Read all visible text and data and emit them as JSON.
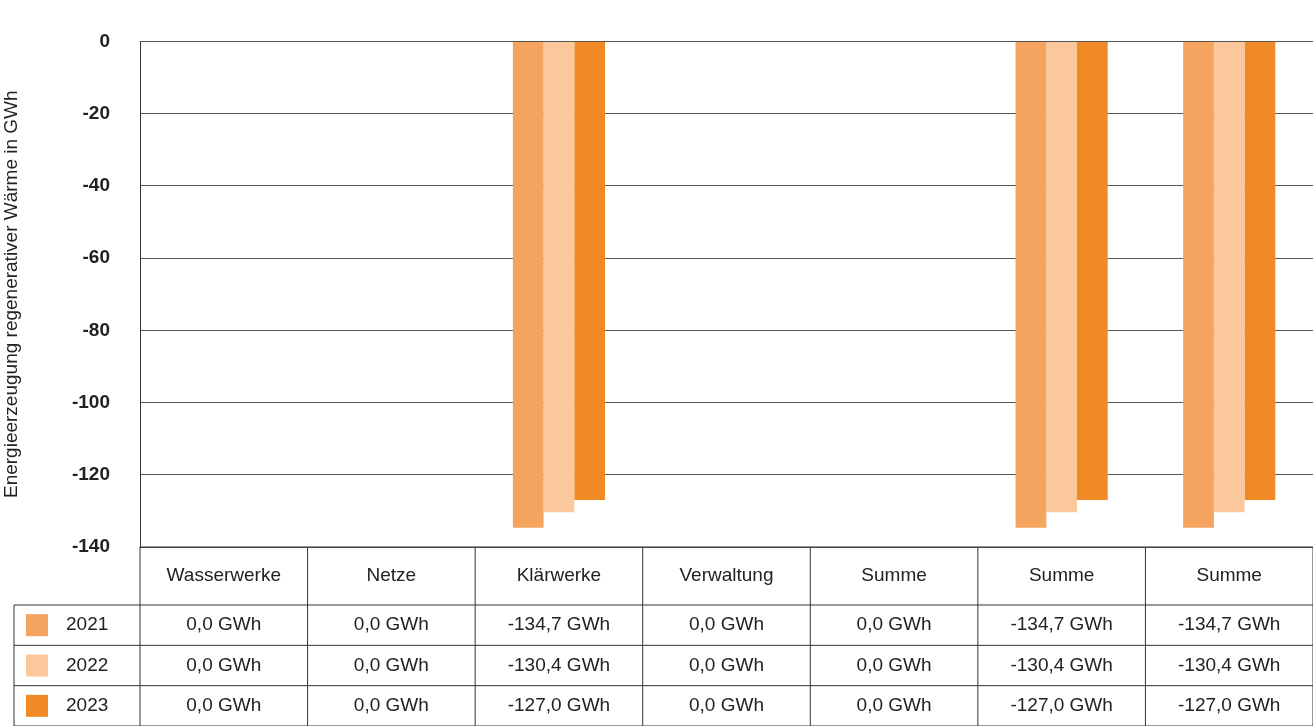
{
  "chart_data": {
    "type": "bar",
    "ylabel": "Energieerzeugung regenerativer Wärme in GWh",
    "categories": [
      "Wasserwerke",
      "Netze",
      "Klärwerke",
      "Verwaltung",
      "Summe",
      "Summe",
      "Summe"
    ],
    "series": [
      {
        "name": "2021",
        "color": "#f5a460",
        "values": [
          0,
          0,
          -134.7,
          0,
          0,
          -134.7,
          -134.7
        ],
        "value_labels": [
          "0,0 GWh",
          "0,0 GWh",
          "-134,7 GWh",
          "0,0 GWh",
          "0,0 GWh",
          "-134,7 GWh",
          "-134,7 GWh"
        ]
      },
      {
        "name": "2022",
        "color": "#fac89a",
        "values": [
          0,
          0,
          -130.4,
          0,
          0,
          -130.4,
          -130.4
        ],
        "value_labels": [
          "0,0 GWh",
          "0,0 GWh",
          "-130,4 GWh",
          "0,0 GWh",
          "0,0 GWh",
          "-130,4 GWh",
          "-130,4 GWh"
        ]
      },
      {
        "name": "2023",
        "color": "#f08a24",
        "values": [
          0,
          0,
          -127.0,
          0,
          0,
          -127.0,
          -127.0
        ],
        "value_labels": [
          "0,0 GWh",
          "0,0 GWh",
          "-127,0 GWh",
          "0,0 GWh",
          "0,0 GWh",
          "-127,0 GWh",
          "-127,0 GWh"
        ]
      }
    ],
    "ylim": [
      -140,
      0
    ],
    "yticks": [
      0,
      -20,
      -40,
      -60,
      -80,
      -100,
      -120,
      -140
    ],
    "grid": "y",
    "legend": "bottom left"
  }
}
